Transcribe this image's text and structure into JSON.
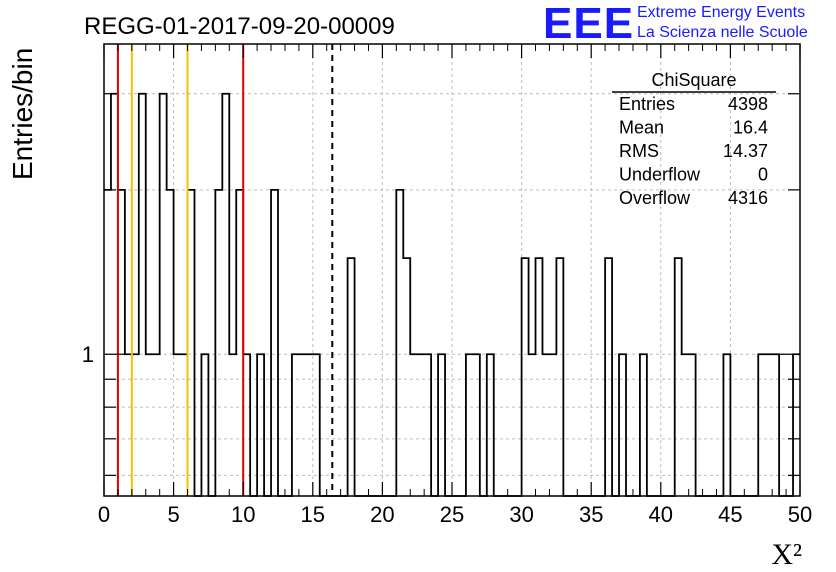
{
  "logo": {
    "mark": "EEE",
    "line1": "Extreme Energy Events",
    "line2": "La Scienza nelle Scuole",
    "color": "#1a1aff"
  },
  "chart_data": {
    "type": "bar",
    "histogram": true,
    "title": "REGG-01-2017-09-20-00009",
    "xlabel": "X²",
    "ylabel": "Entries/bin",
    "xlim": [
      0,
      50
    ],
    "ylim": [
      0.55,
      3.7
    ],
    "log_y": true,
    "grid": true,
    "bin_width": 0.5,
    "x_ticks": [
      0,
      5,
      10,
      15,
      20,
      25,
      30,
      35,
      40,
      45,
      50
    ],
    "y_tick_labels": [
      {
        "value": 1,
        "label": "1"
      }
    ],
    "bins": [
      [
        0,
        2
      ],
      [
        0.5,
        3
      ],
      [
        1,
        2
      ],
      [
        1.5,
        1
      ],
      [
        2,
        1
      ],
      [
        2.5,
        3
      ],
      [
        3,
        1
      ],
      [
        3.5,
        1
      ],
      [
        4,
        3
      ],
      [
        4.5,
        2
      ],
      [
        5,
        1
      ],
      [
        5.5,
        1
      ],
      [
        6,
        2
      ],
      [
        6.5,
        0
      ],
      [
        7,
        1
      ],
      [
        7.5,
        0
      ],
      [
        8,
        2
      ],
      [
        8.5,
        3
      ],
      [
        9,
        1
      ],
      [
        9.5,
        2
      ],
      [
        10,
        1
      ],
      [
        10.5,
        0
      ],
      [
        11,
        1
      ],
      [
        11.5,
        0
      ],
      [
        12,
        2
      ],
      [
        12.5,
        0
      ],
      [
        13,
        0
      ],
      [
        13.5,
        1
      ],
      [
        14,
        1
      ],
      [
        14.5,
        1
      ],
      [
        15,
        1
      ],
      [
        15.5,
        0
      ],
      [
        16,
        0
      ],
      [
        16.5,
        0
      ],
      [
        17,
        0
      ],
      [
        17.5,
        1.5
      ],
      [
        18,
        0
      ],
      [
        18.5,
        0
      ],
      [
        19,
        0
      ],
      [
        19.5,
        0
      ],
      [
        20,
        0
      ],
      [
        20.5,
        0
      ],
      [
        21,
        2
      ],
      [
        21.5,
        1.5
      ],
      [
        22,
        1
      ],
      [
        22.5,
        1
      ],
      [
        23,
        1
      ],
      [
        23.5,
        0
      ],
      [
        24,
        1
      ],
      [
        24.5,
        0
      ],
      [
        25,
        0
      ],
      [
        25.5,
        0
      ],
      [
        26,
        1
      ],
      [
        26.5,
        1
      ],
      [
        27,
        0
      ],
      [
        27.5,
        1
      ],
      [
        28,
        0
      ],
      [
        28.5,
        0
      ],
      [
        29,
        0
      ],
      [
        29.5,
        0
      ],
      [
        30,
        1.5
      ],
      [
        30.5,
        1
      ],
      [
        31,
        1.5
      ],
      [
        31.5,
        1
      ],
      [
        32,
        1
      ],
      [
        32.5,
        1.5
      ],
      [
        33,
        0
      ],
      [
        33.5,
        0
      ],
      [
        34,
        0
      ],
      [
        34.5,
        0
      ],
      [
        35,
        0
      ],
      [
        35.5,
        0
      ],
      [
        36,
        1.5
      ],
      [
        36.5,
        0
      ],
      [
        37,
        1
      ],
      [
        37.5,
        0
      ],
      [
        38,
        0
      ],
      [
        38.5,
        1
      ],
      [
        39,
        0
      ],
      [
        39.5,
        0
      ],
      [
        40,
        0
      ],
      [
        40.5,
        0
      ],
      [
        41,
        1.5
      ],
      [
        41.5,
        1
      ],
      [
        42,
        1
      ],
      [
        42.5,
        0
      ],
      [
        43,
        0
      ],
      [
        43.5,
        0
      ],
      [
        44,
        0
      ],
      [
        44.5,
        1
      ],
      [
        45,
        0
      ],
      [
        45.5,
        0
      ],
      [
        46,
        0
      ],
      [
        46.5,
        0
      ],
      [
        47,
        1
      ],
      [
        47.5,
        1
      ],
      [
        48,
        1
      ],
      [
        48.5,
        0
      ],
      [
        49,
        0
      ],
      [
        49.5,
        1
      ]
    ],
    "vertical_lines": [
      {
        "x": 1,
        "color": "#e00000",
        "style": "solid"
      },
      {
        "x": 2,
        "color": "#f2c200",
        "style": "solid"
      },
      {
        "x": 6,
        "color": "#f2c200",
        "style": "solid"
      },
      {
        "x": 10,
        "color": "#e00000",
        "style": "solid"
      },
      {
        "x": 16.4,
        "color": "#000000",
        "style": "dashed"
      }
    ],
    "stats_box": {
      "title": "ChiSquare",
      "rows": [
        {
          "label": "Entries",
          "value": "4398"
        },
        {
          "label": "Mean",
          "value": "16.4"
        },
        {
          "label": "RMS",
          "value": "14.37"
        },
        {
          "label": "Underflow",
          "value": "0"
        },
        {
          "label": "Overflow",
          "value": "4316"
        }
      ]
    }
  }
}
